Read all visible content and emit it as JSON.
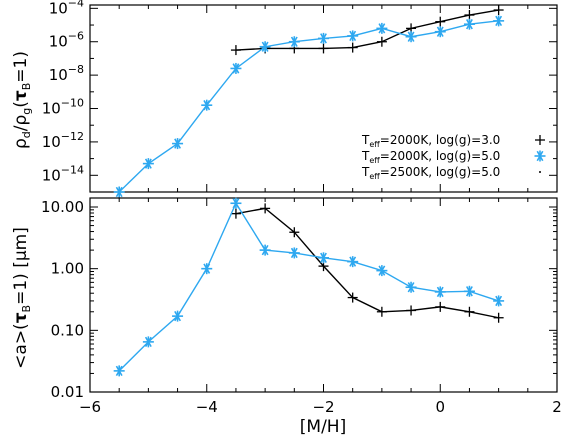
{
  "chart_data": [
    {
      "type": "line",
      "ylabel": "ρd/ρg(τB=1)",
      "ylabel_parts": {
        "rho": "ρ",
        "d": "d",
        "slash": "/",
        "g": "g",
        "open": "(",
        "tau": "τ",
        "B": "B",
        "close": "=1)"
      },
      "yscale": "log",
      "xlim": [
        -6,
        2
      ],
      "ylim_exp": [
        -15,
        -3.8
      ],
      "x_ticks": [
        -6,
        -4,
        -2,
        0,
        2
      ],
      "y_ticks_exp": [
        -14,
        -12,
        -10,
        -8,
        -6,
        -4
      ],
      "y_tick_base": "10",
      "y_tick_signs": {
        "-14": "−14",
        "-12": "−12",
        "-10": "−10",
        "-8": "−8",
        "-6": "−6",
        "-4": "−4"
      },
      "legend": [
        {
          "Teff_prefix": "T",
          "Teff_sub": "eff",
          "text": "=2000K, log(g)=3.0",
          "marker": "plus",
          "color": "#000000"
        },
        {
          "Teff_prefix": "T",
          "Teff_sub": "eff",
          "text": "=2000K, log(g)=5.0",
          "marker": "star",
          "color": "#2ea8f0"
        },
        {
          "Teff_prefix": "T",
          "Teff_sub": "eff",
          "text": "=2500K, log(g)=5.0",
          "marker": "dot",
          "color": "#000000"
        }
      ],
      "series": [
        {
          "marker": "plus",
          "color": "#000000",
          "x": [
            -3.5,
            -3.0,
            -2.5,
            -2.0,
            -1.5,
            -1.0,
            -0.5,
            0.0,
            0.5,
            1.0
          ],
          "y_exp": [
            -6.5,
            -6.4,
            -6.4,
            -6.4,
            -6.35,
            -6.0,
            -5.2,
            -4.8,
            -4.4,
            -4.1
          ]
        },
        {
          "marker": "star",
          "color": "#2ea8f0",
          "x": [
            -5.5,
            -5.0,
            -4.5,
            -4.0,
            -3.5,
            -3.0,
            -2.5,
            -2.0,
            -1.5,
            -1.0,
            -0.5,
            0.0,
            0.5,
            1.0
          ],
          "y_exp": [
            -15.0,
            -13.3,
            -12.1,
            -9.8,
            -7.6,
            -6.3,
            -6.0,
            -5.8,
            -5.65,
            -5.2,
            -5.7,
            -5.4,
            -4.95,
            -4.75
          ]
        }
      ]
    },
    {
      "type": "line",
      "xlabel": "[M/H]",
      "ylabel": "<a>(τB=1) [μm]",
      "ylabel_parts": {
        "a": "<a>(",
        "tau": "τ",
        "B": "B",
        "close": "=1)",
        "unit": " [μm]"
      },
      "yscale": "log",
      "xlim": [
        -6,
        2
      ],
      "ylim": [
        0.01,
        14
      ],
      "x_ticks": [
        -6,
        -4,
        -2,
        0,
        2
      ],
      "x_tick_labels": [
        "−6",
        "−4",
        "−2",
        "0",
        "2"
      ],
      "y_ticks": [
        0.01,
        0.1,
        1,
        10
      ],
      "y_tick_labels": [
        "0.01",
        "0.10",
        "1.00",
        "10.00"
      ],
      "series": [
        {
          "marker": "plus",
          "color": "#000000",
          "x": [
            -3.5,
            -3.0,
            -2.5,
            -2.0,
            -1.5,
            -1.0,
            -0.5,
            0.0,
            0.5,
            1.0
          ],
          "y": [
            7.8,
            9.5,
            3.9,
            1.1,
            0.34,
            0.2,
            0.21,
            0.24,
            0.2,
            0.16
          ]
        },
        {
          "marker": "star",
          "color": "#2ea8f0",
          "x": [
            -5.5,
            -5.0,
            -4.5,
            -4.0,
            -3.5,
            -3.0,
            -2.5,
            -2.0,
            -1.5,
            -1.0,
            -0.5,
            0.0,
            0.5,
            1.0
          ],
          "y": [
            0.022,
            0.065,
            0.17,
            1.0,
            11.5,
            2.0,
            1.8,
            1.5,
            1.3,
            0.93,
            0.5,
            0.42,
            0.43,
            0.3
          ]
        }
      ]
    }
  ]
}
